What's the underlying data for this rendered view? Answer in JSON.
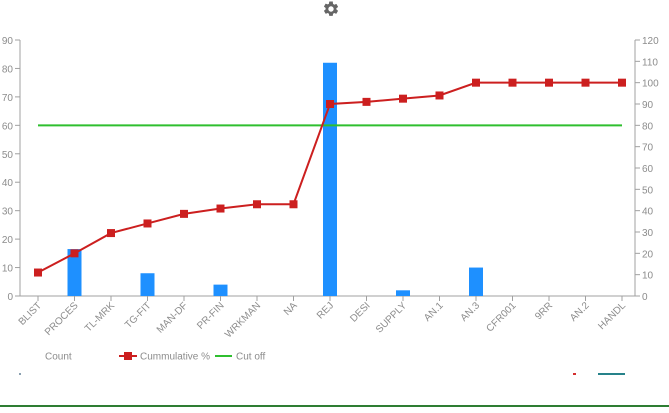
{
  "toolbar": {
    "settings_icon": "gear-icon"
  },
  "chart_data": {
    "type": "bar",
    "categories": [
      "BLIST",
      "PROCES",
      "TL-MRK",
      "TG-FIT",
      "MAN-DF",
      "PR-FIN",
      "WRKMAN",
      "NA",
      "REJ",
      "DESI",
      "SUPPLY",
      "AN.1",
      "AN.3",
      "CFR001",
      "9RR",
      "AN.2",
      "HANDL"
    ],
    "series": [
      {
        "name": "Count",
        "type": "bar",
        "axis": "left",
        "color": "#1e90ff",
        "values": [
          0,
          16.5,
          0,
          8,
          0,
          4,
          0,
          0,
          82,
          0,
          2,
          0,
          10,
          0,
          0,
          0,
          0
        ]
      },
      {
        "name": "Cummulative %",
        "type": "line",
        "axis": "right",
        "color": "#cc1f1f",
        "values": [
          11,
          20,
          29.5,
          34,
          38.5,
          41,
          43,
          43,
          90,
          91,
          92.5,
          94,
          100,
          100,
          100,
          100,
          100
        ]
      },
      {
        "name": "Cut off",
        "type": "line",
        "axis": "right",
        "color": "#2fbf2f",
        "values": [
          80,
          80,
          80,
          80,
          80,
          80,
          80,
          80,
          80,
          80,
          80,
          80,
          80,
          80,
          80,
          80,
          80
        ]
      }
    ],
    "y_left": {
      "min": 0,
      "max": 90,
      "ticks": [
        0,
        10,
        20,
        30,
        40,
        50,
        60,
        70,
        80,
        90
      ]
    },
    "y_right": {
      "min": 0,
      "max": 120,
      "ticks": [
        0,
        10,
        20,
        30,
        40,
        50,
        60,
        70,
        80,
        90,
        100,
        110,
        120
      ]
    },
    "legend": {
      "placement": "bottom-left",
      "items": [
        "Count",
        "Cummulative %",
        "Cut off"
      ]
    },
    "grid": false
  }
}
